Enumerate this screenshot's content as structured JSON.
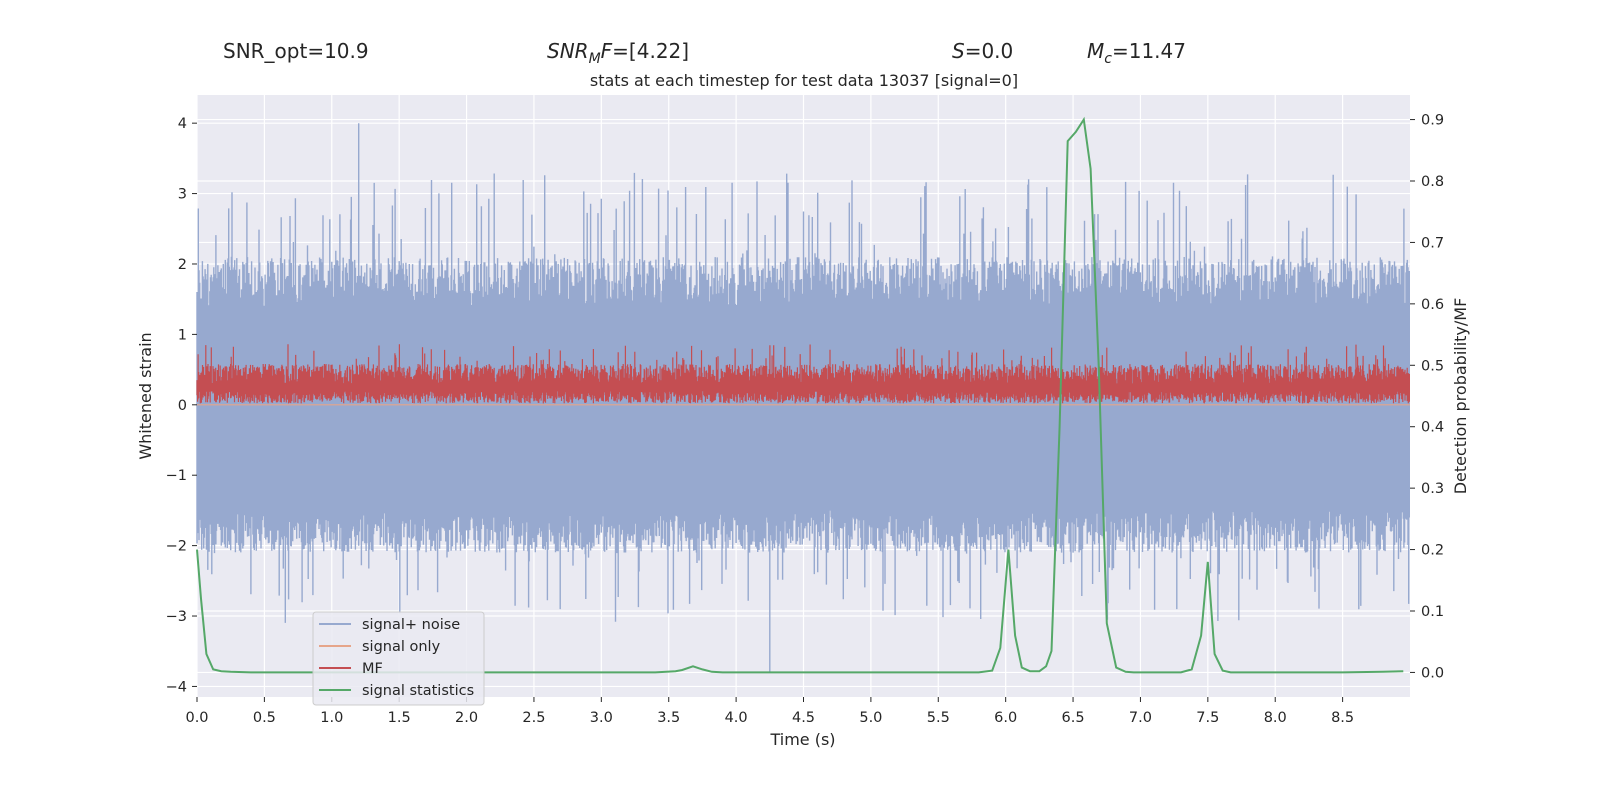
{
  "header": {
    "snr_opt": "SNR_opt=10.9",
    "snr_mf": "=[4.22]",
    "snr_mf_sym": "SNR",
    "snr_mf_sub": "M",
    "snr_mf_f": "F",
    "s_sym": "S",
    "s_val": "=0.0",
    "mc_sym": "M",
    "mc_sub": "c",
    "mc_val": "=11.47"
  },
  "chart_data": {
    "type": "line",
    "title": "stats at each timestep for test data 13037 [signal=0]",
    "xlabel": "Time (s)",
    "ylabel_left": "Whitened strain",
    "ylabel_right": "Detection probability/MF",
    "xlim": [
      0.0,
      9.0
    ],
    "ylim_left": [
      -4.15,
      4.4
    ],
    "ylim_right": [
      -0.04,
      0.94
    ],
    "x_ticks": [
      "0.0",
      "0.5",
      "1.0",
      "1.5",
      "2.0",
      "2.5",
      "3.0",
      "3.5",
      "4.0",
      "4.5",
      "5.0",
      "5.5",
      "6.0",
      "6.5",
      "7.0",
      "7.5",
      "8.0",
      "8.5"
    ],
    "x_tick_values": [
      0.0,
      0.5,
      1.0,
      1.5,
      2.0,
      2.5,
      3.0,
      3.5,
      4.0,
      4.5,
      5.0,
      5.5,
      6.0,
      6.5,
      7.0,
      7.5,
      8.0,
      8.5
    ],
    "y_left_ticks": [
      "4",
      "3",
      "2",
      "1",
      "0",
      "−1",
      "−2",
      "−3",
      "−4"
    ],
    "y_left_tick_values": [
      4,
      3,
      2,
      1,
      0,
      -1,
      -2,
      -3,
      -4
    ],
    "y_right_ticks": [
      "0.9",
      "0.8",
      "0.7",
      "0.6",
      "0.5",
      "0.4",
      "0.3",
      "0.2",
      "0.1",
      "0.0"
    ],
    "y_right_tick_values": [
      0.9,
      0.8,
      0.7,
      0.6,
      0.5,
      0.4,
      0.3,
      0.2,
      0.1,
      0.0
    ],
    "grid": true,
    "legend_position": "lower-left",
    "series": [
      {
        "name": "signal+ noise",
        "color": "#97a9cf",
        "axis": "left",
        "style": "noise",
        "noise_stats": {
          "core_range": [
            -1.5,
            1.4
          ],
          "peak_range": [
            -3.8,
            4.0
          ]
        }
      },
      {
        "name": "signal only",
        "color": "#e6a58a",
        "axis": "left",
        "style": "flat",
        "values_const": 0.0
      },
      {
        "name": "MF",
        "color": "#c44e52",
        "axis": "left",
        "style": "noise",
        "noise_stats": {
          "core_range": [
            0.0,
            0.55
          ],
          "peak_range": [
            0.0,
            0.9
          ]
        }
      },
      {
        "name": "signal statistics",
        "color": "#55a868",
        "axis": "right",
        "style": "line",
        "x": [
          0.0,
          0.03,
          0.07,
          0.12,
          0.18,
          0.25,
          0.4,
          1.0,
          2.0,
          3.0,
          3.4,
          3.55,
          3.6,
          3.68,
          3.75,
          3.82,
          3.9,
          4.5,
          5.5,
          5.8,
          5.9,
          5.96,
          6.02,
          6.07,
          6.12,
          6.18,
          6.25,
          6.3,
          6.34,
          6.4,
          6.46,
          6.52,
          6.58,
          6.63,
          6.69,
          6.75,
          6.82,
          6.89,
          6.95,
          7.0,
          7.3,
          7.38,
          7.45,
          7.5,
          7.55,
          7.61,
          7.67,
          7.72,
          8.0,
          8.5,
          8.8,
          8.95
        ],
        "values": [
          0.2,
          0.12,
          0.03,
          0.005,
          0.002,
          0.001,
          0.0,
          0.0,
          0.0,
          0.0,
          0.0,
          0.002,
          0.004,
          0.01,
          0.005,
          0.001,
          0.0,
          0.0,
          0.0,
          0.0,
          0.003,
          0.04,
          0.2,
          0.06,
          0.008,
          0.002,
          0.002,
          0.01,
          0.035,
          0.4,
          0.865,
          0.88,
          0.9,
          0.82,
          0.5,
          0.08,
          0.008,
          0.001,
          0.0,
          0.0,
          0.0,
          0.005,
          0.06,
          0.18,
          0.03,
          0.003,
          0.0,
          0.0,
          0.0,
          0.0,
          0.001,
          0.002
        ]
      }
    ]
  }
}
